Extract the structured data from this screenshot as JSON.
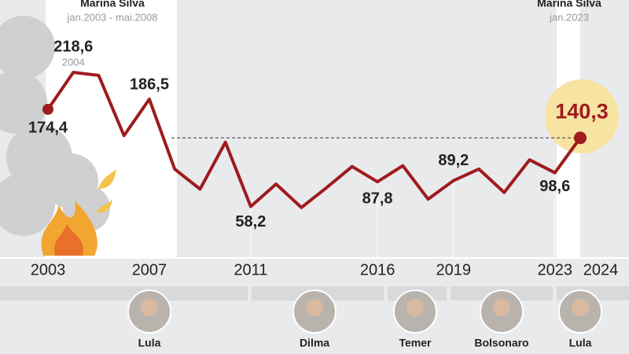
{
  "chart_data": {
    "type": "line",
    "x": [
      2003,
      2004,
      2005,
      2006,
      2007,
      2008,
      2009,
      2010,
      2011,
      2012,
      2013,
      2014,
      2015,
      2016,
      2017,
      2018,
      2019,
      2020,
      2021,
      2022,
      2023,
      2024
    ],
    "values": [
      174.4,
      218.6,
      215,
      143,
      186.5,
      103,
      79,
      135,
      58.2,
      85,
      57,
      81,
      106,
      87.8,
      107,
      67,
      89.2,
      103,
      75,
      114,
      98.6,
      140.3
    ],
    "value_labels": [
      "174,4",
      "218,6",
      null,
      null,
      "186,5",
      null,
      null,
      null,
      "58,2",
      null,
      null,
      null,
      null,
      "87,8",
      null,
      null,
      "89,2",
      null,
      null,
      null,
      "98,6",
      "140,3"
    ],
    "color": "#9e1b1e",
    "ylim": [
      0,
      250
    ],
    "xlim": [
      2003,
      2024
    ],
    "xticks": [
      2003,
      2007,
      2011,
      2016,
      2019,
      2023,
      2024
    ],
    "peak_note": "2004",
    "periods": [
      {
        "label": "Marina Silva",
        "sublabel": "jan.2003 - mai.2008"
      },
      {
        "label": "Marina Silva",
        "sublabel": "jan.2023"
      }
    ],
    "presidents": [
      "Lula",
      "Dilma",
      "Temer",
      "Bolsonaro",
      "Lula"
    ]
  }
}
